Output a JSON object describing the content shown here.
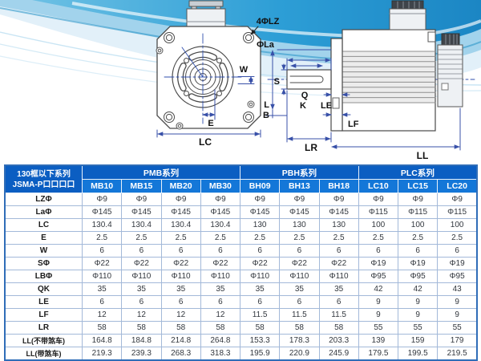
{
  "diagram": {
    "front": {
      "holes_label": "4ΦLZ",
      "boss_dia_label": "ΦLa",
      "w_label": "W",
      "e_label": "E",
      "lc_label": "LC"
    },
    "side": {
      "s_label": "S",
      "q_label": "Q",
      "k_label": "K",
      "le_label": "LE",
      "l_label": "L",
      "b_label": "B",
      "lf_label": "LF",
      "lr_label": "LR",
      "ll_label": "LL"
    }
  },
  "table": {
    "corner_header": {
      "line1": "130框以下系列",
      "line2": "JSMA-P口口口口"
    },
    "groups": [
      {
        "label": "PMB系列",
        "span": 4
      },
      {
        "label": "PBH系列",
        "span": 3
      },
      {
        "label": "PLC系列",
        "span": 3
      }
    ],
    "columns": [
      "MB10",
      "MB15",
      "MB20",
      "MB30",
      "BH09",
      "BH13",
      "BH18",
      "LC10",
      "LC15",
      "LC20"
    ],
    "rows": [
      {
        "label": "LZΦ",
        "values": [
          "Φ9",
          "Φ9",
          "Φ9",
          "Φ9",
          "Φ9",
          "Φ9",
          "Φ9",
          "Φ9",
          "Φ9",
          "Φ9"
        ]
      },
      {
        "label": "LaΦ",
        "values": [
          "Φ145",
          "Φ145",
          "Φ145",
          "Φ145",
          "Φ145",
          "Φ145",
          "Φ145",
          "Φ115",
          "Φ115",
          "Φ115"
        ]
      },
      {
        "label": "LC",
        "values": [
          "130.4",
          "130.4",
          "130.4",
          "130.4",
          "130",
          "130",
          "130",
          "100",
          "100",
          "100"
        ]
      },
      {
        "label": "E",
        "values": [
          "2.5",
          "2.5",
          "2.5",
          "2.5",
          "2.5",
          "2.5",
          "2.5",
          "2.5",
          "2.5",
          "2.5"
        ]
      },
      {
        "label": "W",
        "values": [
          "6",
          "6",
          "6",
          "6",
          "6",
          "6",
          "6",
          "6",
          "6",
          "6"
        ]
      },
      {
        "label": "SΦ",
        "values": [
          "Φ22",
          "Φ22",
          "Φ22",
          "Φ22",
          "Φ22",
          "Φ22",
          "Φ22",
          "Φ19",
          "Φ19",
          "Φ19"
        ]
      },
      {
        "label": "LBΦ",
        "values": [
          "Φ110",
          "Φ110",
          "Φ110",
          "Φ110",
          "Φ110",
          "Φ110",
          "Φ110",
          "Φ95",
          "Φ95",
          "Φ95"
        ]
      },
      {
        "label": "QK",
        "values": [
          "35",
          "35",
          "35",
          "35",
          "35",
          "35",
          "35",
          "42",
          "42",
          "43"
        ]
      },
      {
        "label": "LE",
        "values": [
          "6",
          "6",
          "6",
          "6",
          "6",
          "6",
          "6",
          "9",
          "9",
          "9"
        ]
      },
      {
        "label": "LF",
        "values": [
          "12",
          "12",
          "12",
          "12",
          "11.5",
          "11.5",
          "11.5",
          "9",
          "9",
          "9"
        ]
      },
      {
        "label": "LR",
        "values": [
          "58",
          "58",
          "58",
          "58",
          "58",
          "58",
          "58",
          "55",
          "55",
          "55"
        ]
      },
      {
        "label": "LL(不带煞车)",
        "values": [
          "164.8",
          "184.8",
          "214.8",
          "264.8",
          "153.3",
          "178.3",
          "203.3",
          "139",
          "159",
          "179"
        ]
      },
      {
        "label": "LL(带煞车)",
        "values": [
          "219.3",
          "239.3",
          "268.3",
          "318.3",
          "195.9",
          "220.9",
          "245.9",
          "179.5",
          "199.5",
          "219.5"
        ]
      }
    ]
  },
  "colors": {
    "header_group_blue": "#0b5ec2",
    "header_model_blue": "#1477d8",
    "table_grid": "#a3b9d9",
    "table_outer_border": "#2f6db8",
    "wave_blue": "#2d9ed6",
    "dim_line_blue": "#3850a8",
    "outline_gray": "#4a4a4a"
  }
}
